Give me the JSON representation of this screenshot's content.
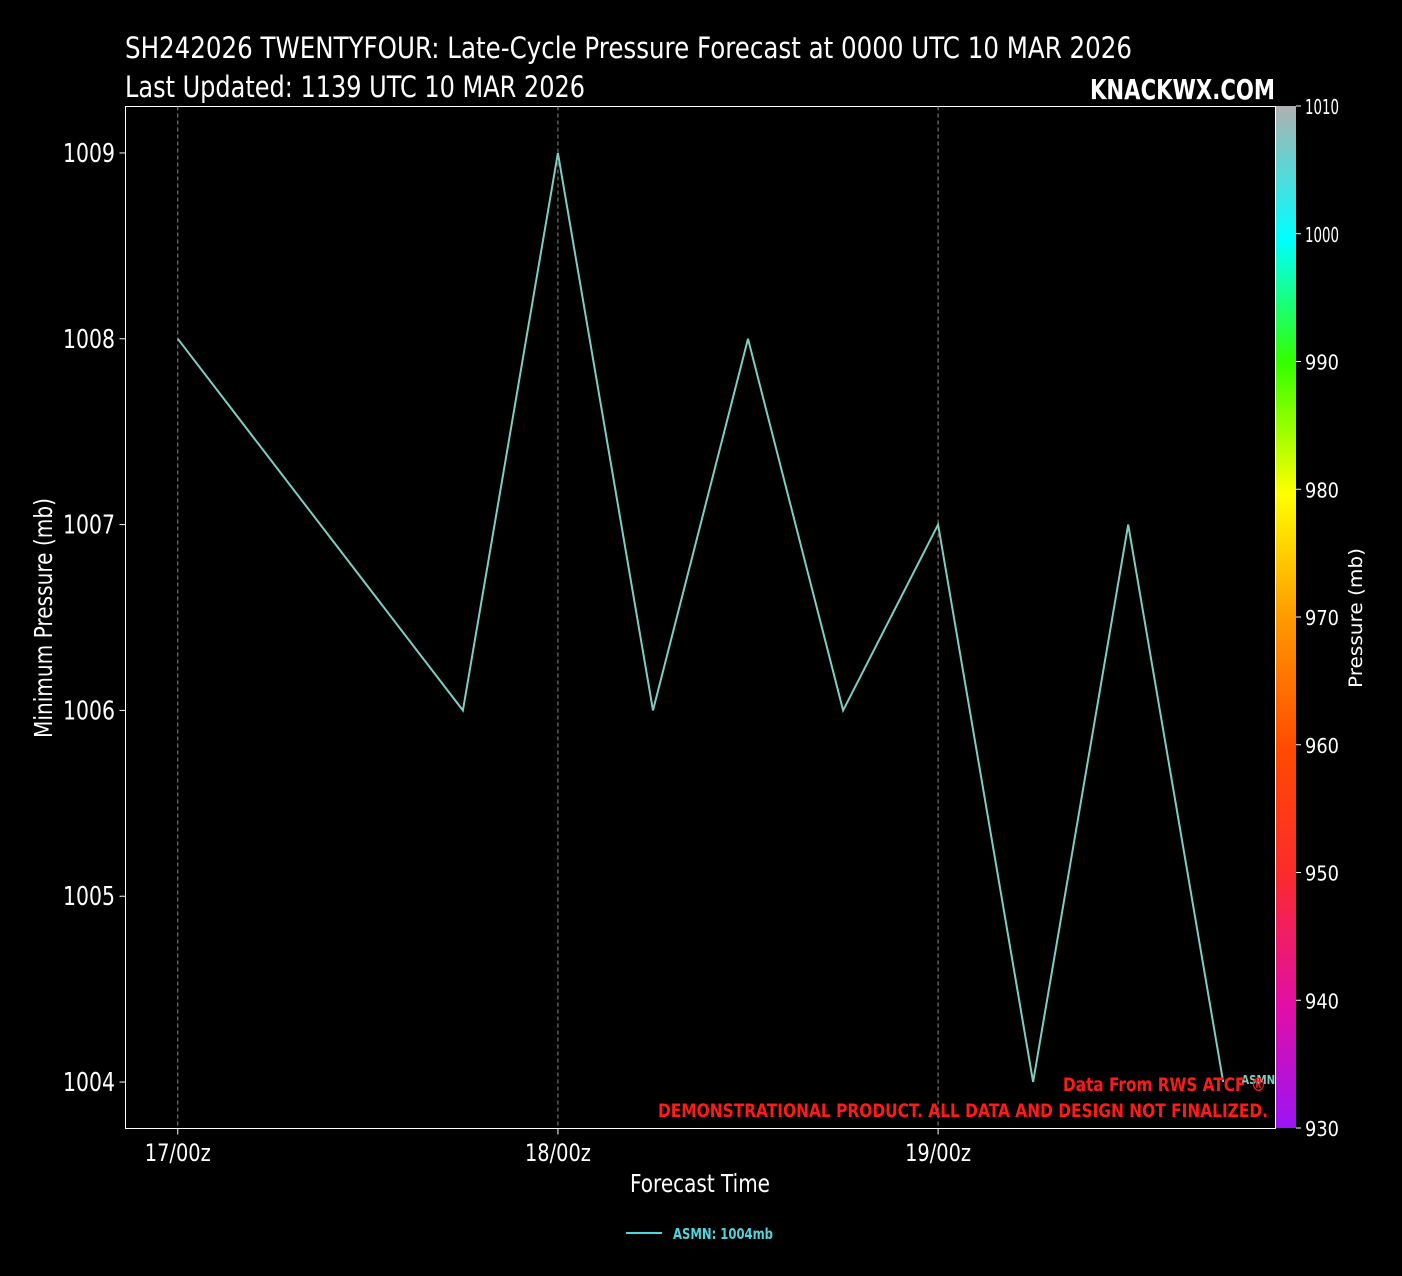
{
  "header": {
    "title_line1": "SH242026 TWENTYFOUR: Late-Cycle Pressure Forecast at 0000 UTC 10 MAR 2026",
    "title_line2": "Last Updated: 1139 UTC 10 MAR 2026",
    "brand": "KNACKWX.COM"
  },
  "chart_data": {
    "type": "line",
    "xlabel": "Forecast Time",
    "ylabel": "Minimum Pressure (mb)",
    "x_ticks": [
      "17/00z",
      "18/00z",
      "19/00z"
    ],
    "x_tick_hours": [
      0,
      24,
      48
    ],
    "xlim_hours": [
      -3.3,
      69.3
    ],
    "ylim": [
      1003.75,
      1009.25
    ],
    "y_ticks": [
      1004,
      1005,
      1006,
      1007,
      1008,
      1009
    ],
    "grid": "x-dashed",
    "series": [
      {
        "name": "ASMN",
        "color": "#7fcdc0",
        "x_hours": [
          0,
          18,
          24,
          30,
          36,
          42,
          48,
          54,
          60,
          66
        ],
        "values": [
          1008,
          1006,
          1009,
          1006,
          1008,
          1006,
          1007,
          1004,
          1007,
          1004
        ],
        "end_label": "ASMN"
      }
    ],
    "legend": {
      "placement": "bottom-center",
      "entries": [
        "ASMN: 1004mb"
      ],
      "color": "#4fd6dc"
    },
    "colorbar": {
      "label": "Pressure (mb)",
      "ticks": [
        1010,
        1000,
        990,
        980,
        970,
        960,
        950,
        940,
        930
      ],
      "range": [
        930,
        1010
      ]
    }
  },
  "notes": {
    "source": "Data From RWS ATCF ®",
    "disclaimer": "DEMONSTRATIONAL PRODUCT. ALL DATA AND DESIGN NOT FINALIZED."
  }
}
